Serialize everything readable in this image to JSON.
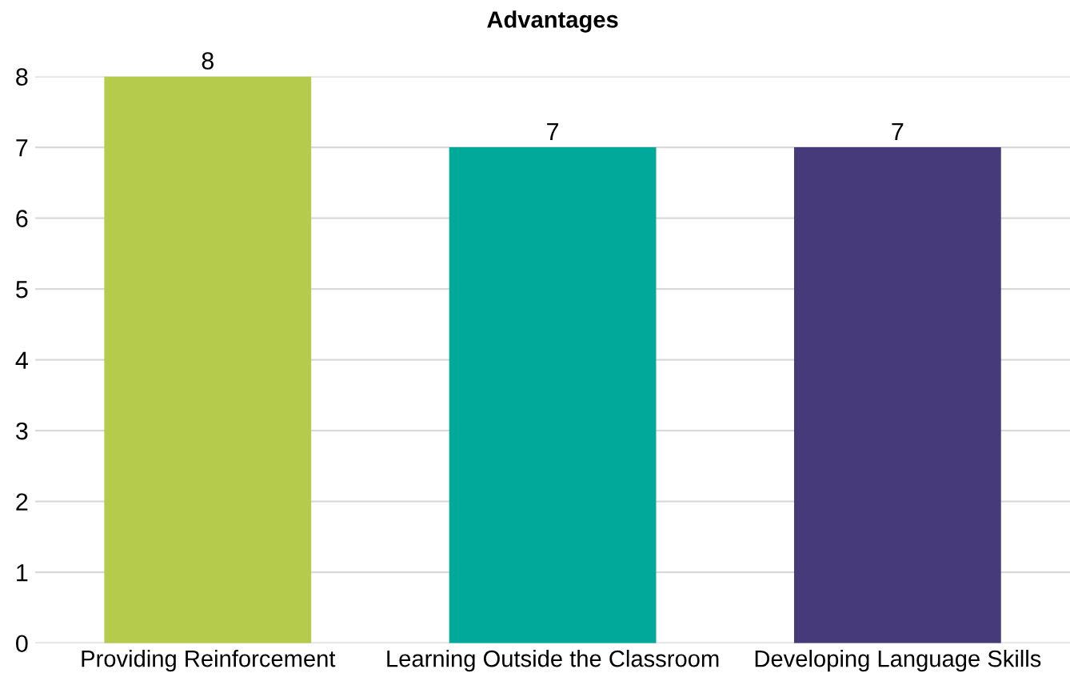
{
  "chart_data": {
    "type": "bar",
    "title": "Advantages",
    "categories": [
      "Providing Reinforcement",
      "Learning Outside the Classroom",
      "Developing Language Skills"
    ],
    "values": [
      8,
      7,
      7
    ],
    "colors": [
      "#b5cb4b",
      "#00a99a",
      "#463a7a"
    ],
    "ylim": [
      0,
      8
    ],
    "yticks": [
      0,
      1,
      2,
      3,
      4,
      5,
      6,
      7,
      8
    ],
    "grid": "y",
    "data_labels": true
  }
}
